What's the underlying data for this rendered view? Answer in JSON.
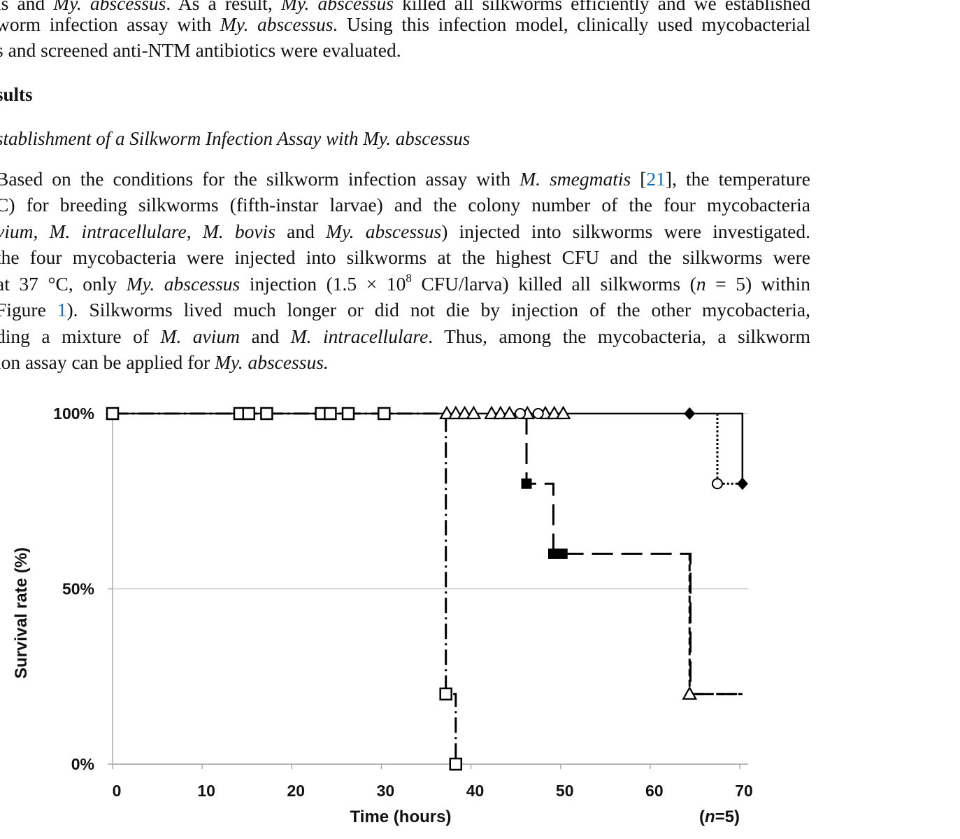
{
  "text": {
    "line0": {
      "a": "is and ",
      "b": "My. abscessus",
      "c": ". As a result, ",
      "d": "My. abscessus",
      "e": " killed all silkworms efficiently and we established"
    },
    "line1": {
      "a": "worm infection assay with ",
      "b": "My. abscessus.",
      "c": " Using this infection model, clinically used mycobacterial"
    },
    "line2": {
      "a": "s and screened anti-NTM antibiotics were evaluated."
    },
    "results_heading": "sults",
    "subsection_heading": "stablishment of a Silkworm Infection Assay with My. abscessus",
    "p1": {
      "a": "Based on the conditions for the silkworm infection assay with ",
      "b": "M. smegmatis",
      "c": " [",
      "ref": "21",
      "d": "], the temperature"
    },
    "p2": {
      "a": "C) for breeding silkworms (fifth-instar larvae) and the colony number of the four mycobacteria"
    },
    "p3": {
      "a": "vium",
      "b": ", ",
      "c": "M. intracellulare",
      "d": ", ",
      "e": "M. bovis",
      "f": " and ",
      "g": "My. abscessus",
      "h": ") injected into silkworms were investigated."
    },
    "p4": {
      "a": " the four mycobacteria were injected into silkworms at the highest CFU and the silkworms were"
    },
    "p5": {
      "a": "at 37 °C, only ",
      "b": "My. abscessus",
      "c": " injection (1.5 × 10",
      "sup": "8",
      "d": " CFU/larva) killed all silkworms (",
      "e": "n",
      "f": " = 5) within"
    },
    "p6": {
      "a": "Figure ",
      "ref": "1",
      "b": "). Silkworms lived much longer or did not die by injection of the other mycobacteria,"
    },
    "p7": {
      "a": "ding a mixture of ",
      "b": "M. avium",
      "c": " and ",
      "d": "M. intracellulare",
      "e": ". Thus, among the mycobacteria, a silkworm"
    },
    "p8": {
      "a": "ion assay can be applied for ",
      "b": "My. abscessus."
    }
  },
  "chart_data": {
    "type": "line",
    "subtype": "kaplan-meier survival",
    "xlabel": "Time (hours)",
    "ylabel": "Survival rate (%)",
    "xlim": [
      0,
      70
    ],
    "ylim": [
      0,
      100
    ],
    "x_ticks": [
      "0",
      "10",
      "20",
      "30",
      "40",
      "50",
      "60",
      "70"
    ],
    "y_ticks": [
      "0%",
      "50%",
      "100%"
    ],
    "annotation": {
      "pre": "(",
      "italic": "n",
      "post": "=5)"
    },
    "grid": "horizontal",
    "series": [
      {
        "style": "dash-dot, open square",
        "color": "#000000",
        "x": [
          0,
          37.2,
          38.3
        ],
        "y": [
          100,
          20,
          0
        ],
        "markers": [
          {
            "x": 0,
            "y": 100,
            "shape": "open-square"
          },
          {
            "x": 14.2,
            "y": 100,
            "shape": "open-square"
          },
          {
            "x": 15.2,
            "y": 100,
            "shape": "open-square"
          },
          {
            "x": 17.2,
            "y": 100,
            "shape": "open-square"
          },
          {
            "x": 23.3,
            "y": 100,
            "shape": "open-square"
          },
          {
            "x": 24.3,
            "y": 100,
            "shape": "open-square"
          },
          {
            "x": 26.3,
            "y": 100,
            "shape": "open-square"
          },
          {
            "x": 30.3,
            "y": 100,
            "shape": "open-square"
          },
          {
            "x": 37.2,
            "y": 20,
            "shape": "open-square"
          },
          {
            "x": 38.3,
            "y": 0,
            "shape": "open-square"
          }
        ]
      },
      {
        "style": "long dash, filled square",
        "color": "#000000",
        "x": [
          46.2,
          49.2,
          64.5,
          70.3
        ],
        "y": [
          80,
          60,
          20,
          20
        ],
        "markers": [
          {
            "x": 46.2,
            "y": 80,
            "shape": "filled-square"
          },
          {
            "x": 49.2,
            "y": 60,
            "shape": "filled-square"
          },
          {
            "x": 50.2,
            "y": 60,
            "shape": "filled-square"
          }
        ]
      },
      {
        "style": "short dash, open triangle",
        "color": "#000000",
        "x": [
          64.4,
          70.3
        ],
        "y": [
          20,
          20
        ],
        "markers": [
          {
            "x": 37.3,
            "y": 100,
            "shape": "open-triangle"
          },
          {
            "x": 38.3,
            "y": 100,
            "shape": "open-triangle"
          },
          {
            "x": 39.3,
            "y": 100,
            "shape": "open-triangle"
          },
          {
            "x": 40.3,
            "y": 100,
            "shape": "open-triangle"
          },
          {
            "x": 42.3,
            "y": 100,
            "shape": "open-triangle"
          },
          {
            "x": 43.3,
            "y": 100,
            "shape": "open-triangle"
          },
          {
            "x": 44.3,
            "y": 100,
            "shape": "open-triangle"
          },
          {
            "x": 46.3,
            "y": 100,
            "shape": "open-triangle"
          },
          {
            "x": 48.3,
            "y": 100,
            "shape": "open-triangle"
          },
          {
            "x": 49.3,
            "y": 100,
            "shape": "open-triangle"
          },
          {
            "x": 50.3,
            "y": 100,
            "shape": "open-triangle"
          },
          {
            "x": 64.4,
            "y": 20,
            "shape": "open-triangle"
          }
        ]
      },
      {
        "style": "dotted, open circle",
        "color": "#000000",
        "x": [
          67.5,
          70.3
        ],
        "y": [
          80,
          80
        ],
        "markers": [
          {
            "x": 45.5,
            "y": 100,
            "shape": "open-circle"
          },
          {
            "x": 47.5,
            "y": 100,
            "shape": "open-circle"
          },
          {
            "x": 67.5,
            "y": 80,
            "shape": "open-circle"
          }
        ]
      },
      {
        "style": "solid, filled diamond",
        "color": "#000000",
        "x": [
          0,
          70.3,
          70.3
        ],
        "y": [
          100,
          100,
          80
        ],
        "markers": [
          {
            "x": 64.4,
            "y": 100,
            "shape": "filled-diamond"
          },
          {
            "x": 70.3,
            "y": 80,
            "shape": "filled-diamond"
          }
        ]
      }
    ]
  }
}
